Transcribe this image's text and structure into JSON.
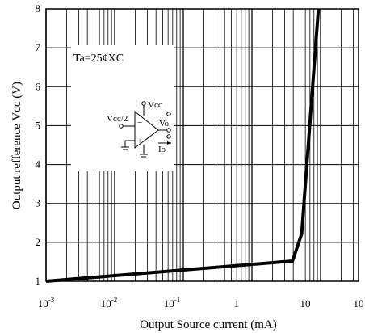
{
  "chart_data": {
    "type": "line",
    "title": "",
    "xlabel": "Output Source current (mA)",
    "ylabel": "Output refference Vcc  (V)",
    "xscale": "log",
    "xlim": [
      0.001,
      10
    ],
    "ylim": [
      1,
      8
    ],
    "grid": true,
    "x_ticks": [
      {
        "value": 0.001,
        "base": "10",
        "exp": "-3"
      },
      {
        "value": 0.01,
        "base": "10",
        "exp": "-2"
      },
      {
        "value": 0.1,
        "base": "10",
        "exp": "-1"
      },
      {
        "value": 1,
        "base": "1",
        "exp": ""
      },
      {
        "value": 10,
        "base": "10",
        "exp": ""
      },
      {
        "value": 100,
        "base": "10",
        "exp": ""
      }
    ],
    "y_ticks": [
      "1",
      "2",
      "3",
      "4",
      "5",
      "6",
      "7",
      "8"
    ],
    "series": [
      {
        "x": [
          0.001,
          3.9,
          5.3,
          9.3
        ],
        "y": [
          1.0,
          1.52,
          2.22,
          8.0
        ]
      }
    ],
    "annotation": "Ta=25¢XC",
    "circuit_labels": {
      "vcc2": "Vcc/2",
      "vcc": "Vcc",
      "vo": "Vo",
      "io": "Io"
    }
  }
}
